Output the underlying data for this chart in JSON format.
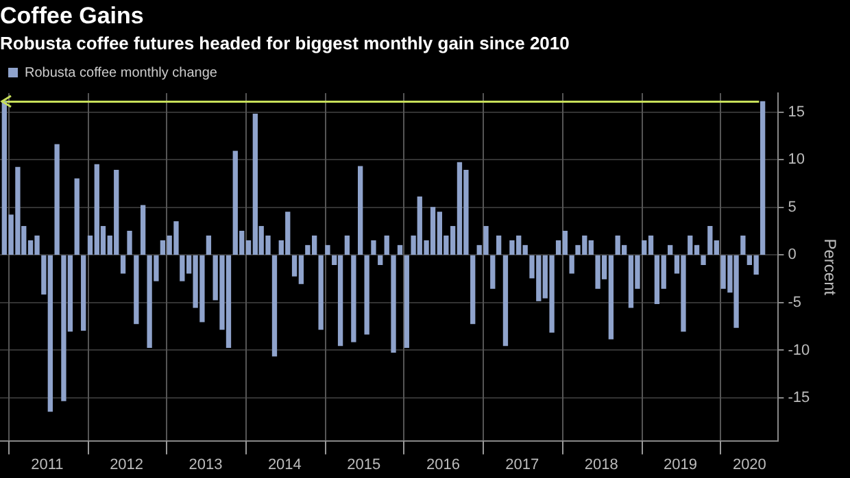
{
  "chart_data": {
    "type": "bar",
    "title": "Coffee Gains",
    "subtitle": "Robusta coffee futures headed for biggest monthly gain since 2010",
    "ylabel": "Percent",
    "x": [
      "2010-12",
      "2011-01",
      "2011-02",
      "2011-03",
      "2011-04",
      "2011-05",
      "2011-06",
      "2011-07",
      "2011-08",
      "2011-09",
      "2011-10",
      "2011-11",
      "2011-12",
      "2012-01",
      "2012-02",
      "2012-03",
      "2012-04",
      "2012-05",
      "2012-06",
      "2012-07",
      "2012-08",
      "2012-09",
      "2012-10",
      "2012-11",
      "2012-12",
      "2013-01",
      "2013-02",
      "2013-03",
      "2013-04",
      "2013-05",
      "2013-06",
      "2013-07",
      "2013-08",
      "2013-09",
      "2013-10",
      "2013-11",
      "2013-12",
      "2014-01",
      "2014-02",
      "2014-03",
      "2014-04",
      "2014-05",
      "2014-06",
      "2014-07",
      "2014-08",
      "2014-09",
      "2014-10",
      "2014-11",
      "2014-12",
      "2015-01",
      "2015-02",
      "2015-03",
      "2015-04",
      "2015-05",
      "2015-06",
      "2015-07",
      "2015-08",
      "2015-09",
      "2015-10",
      "2015-11",
      "2015-12",
      "2016-01",
      "2016-02",
      "2016-03",
      "2016-04",
      "2016-05",
      "2016-06",
      "2016-07",
      "2016-08",
      "2016-09",
      "2016-10",
      "2016-11",
      "2016-12",
      "2017-01",
      "2017-02",
      "2017-03",
      "2017-04",
      "2017-05",
      "2017-06",
      "2017-07",
      "2017-08",
      "2017-09",
      "2017-10",
      "2017-11",
      "2017-12",
      "2018-01",
      "2018-02",
      "2018-03",
      "2018-04",
      "2018-05",
      "2018-06",
      "2018-07",
      "2018-08",
      "2018-09",
      "2018-10",
      "2018-11",
      "2018-12",
      "2019-01",
      "2019-02",
      "2019-03",
      "2019-04",
      "2019-05",
      "2019-06",
      "2019-07",
      "2019-08",
      "2019-09",
      "2019-10",
      "2019-11",
      "2019-12",
      "2020-01",
      "2020-02",
      "2020-03",
      "2020-04",
      "2020-05",
      "2020-06",
      "2020-07"
    ],
    "series": [
      {
        "name": "Robusta coffee monthly change",
        "color": "#8fa3cc",
        "values": [
          16.1,
          4.2,
          9.2,
          3,
          1.5,
          2,
          -4.1,
          -16.4,
          11.6,
          -15.3,
          -8,
          8,
          -7.9,
          2,
          9.5,
          3,
          2,
          8.9,
          -1.9,
          2.5,
          -7.2,
          5.2,
          -9.7,
          -2.7,
          1.5,
          2,
          3.5,
          -2.7,
          -1.9,
          -5.5,
          -7,
          2,
          -4.7,
          -7.8,
          -9.7,
          10.9,
          2.5,
          1.5,
          14.8,
          3,
          2,
          -10.6,
          1.5,
          4.5,
          -2.2,
          -3,
          1,
          2,
          -7.8,
          1,
          -1,
          -9.5,
          2,
          -9.1,
          9.3,
          -8.3,
          1.5,
          -1,
          2,
          -10.2,
          1,
          -9.7,
          2,
          6.1,
          1.5,
          5,
          4.5,
          2,
          3,
          9.7,
          8.9,
          -7.2,
          1,
          3,
          -3.5,
          2,
          -9.5,
          1.5,
          2,
          1,
          -2.4,
          -4.8,
          -4.5,
          -8.1,
          1.5,
          2.5,
          -1.9,
          1,
          2,
          1.5,
          -3.5,
          -2.5,
          -8.8,
          2,
          1,
          -5.5,
          -3.5,
          1.5,
          2,
          -5.1,
          -3.5,
          1,
          -1.9,
          -8,
          2,
          1,
          -1,
          3,
          1.5,
          -3.5,
          -3.9,
          -7.6,
          2,
          -1,
          -2,
          16.1
        ]
      }
    ],
    "xlim": [
      "2010-11-25",
      "2020-09-25"
    ],
    "xticks": [
      {
        "value": "2011-01-01",
        "label": null
      },
      {
        "value": "2011-07-01",
        "label": "2011"
      },
      {
        "value": "2012-01-01",
        "label": null
      },
      {
        "value": "2012-07-01",
        "label": "2012"
      },
      {
        "value": "2013-01-01",
        "label": null
      },
      {
        "value": "2013-07-01",
        "label": "2013"
      },
      {
        "value": "2014-01-01",
        "label": null
      },
      {
        "value": "2014-07-01",
        "label": "2014"
      },
      {
        "value": "2015-01-01",
        "label": null
      },
      {
        "value": "2015-07-01",
        "label": "2015"
      },
      {
        "value": "2016-01-01",
        "label": null
      },
      {
        "value": "2016-07-01",
        "label": "2016"
      },
      {
        "value": "2017-01-01",
        "label": null
      },
      {
        "value": "2017-07-01",
        "label": "2017"
      },
      {
        "value": "2018-01-01",
        "label": null
      },
      {
        "value": "2018-07-01",
        "label": "2018"
      },
      {
        "value": "2019-01-01",
        "label": null
      },
      {
        "value": "2019-07-01",
        "label": "2019"
      },
      {
        "value": "2020-01-01",
        "label": null
      },
      {
        "value": "2020-05-15",
        "label": "2020"
      }
    ],
    "ylim": [
      -19.5,
      17
    ],
    "yticks": [
      -15,
      -10,
      -5,
      0,
      5,
      10,
      15
    ],
    "ref_lines": [
      {
        "axis": "y",
        "value": 16.1,
        "color": "#c8e05a"
      }
    ],
    "grid": true,
    "legend": "top left"
  }
}
